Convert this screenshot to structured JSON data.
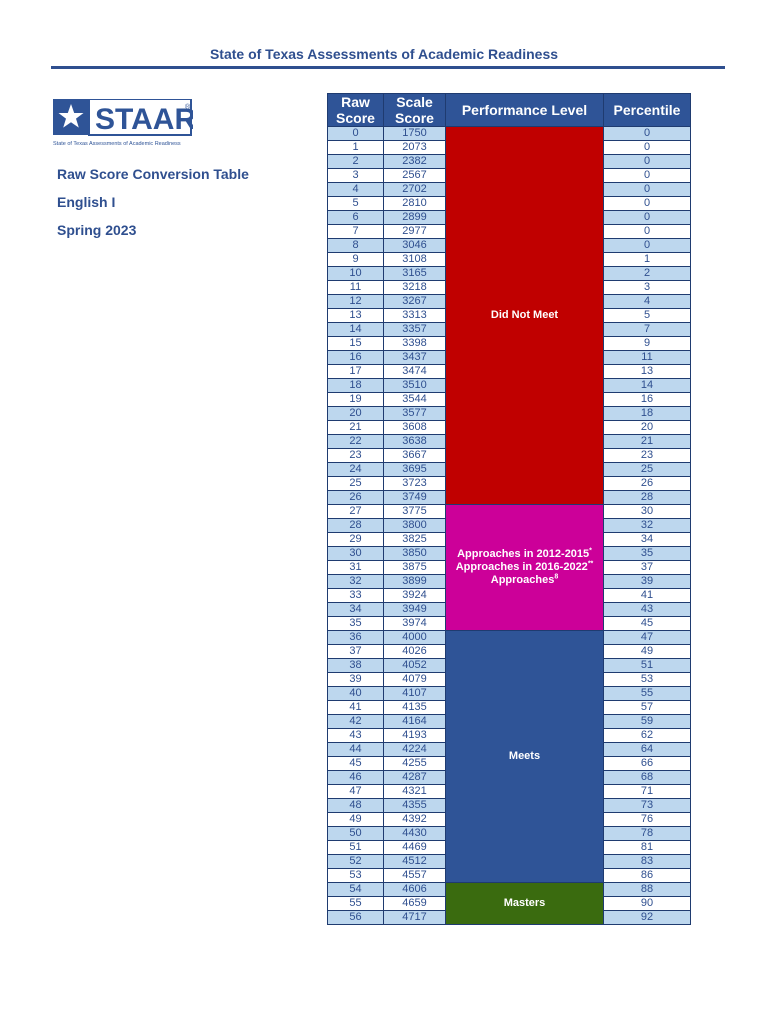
{
  "header": {
    "title": "State of Texas Assessments of Academic Readiness"
  },
  "logo": {
    "wordmark": "STAAR",
    "registered": "®",
    "tagline": "State of Texas Assessments of Academic Readiness",
    "colors": {
      "blue": "#2f5497",
      "white": "#ffffff"
    }
  },
  "sidebar": {
    "table_name": "Raw Score Conversion Table",
    "subject": "English I",
    "term": "Spring 2023"
  },
  "table": {
    "headers": {
      "raw_line1": "Raw",
      "raw_line2": "Score",
      "scale_line1": "Scale",
      "scale_line2": "Score",
      "level": "Performance Level",
      "percentile": "Percentile"
    },
    "levels": {
      "did_not_meet": "Did Not Meet",
      "approaches_line1": "Approaches in 2012-2015",
      "approaches_line1_sup": "*",
      "approaches_line2": "Approaches in 2016-2022",
      "approaches_line2_sup": "**",
      "approaches_line3": "Approaches",
      "approaches_line3_sup": "8",
      "meets": "Meets",
      "masters": "Masters"
    },
    "level_spans": [
      {
        "key": "did_not_meet",
        "start_raw": 0,
        "rows": 27,
        "color": "#c00000"
      },
      {
        "key": "approaches",
        "start_raw": 27,
        "rows": 9,
        "color": "#cc0099"
      },
      {
        "key": "meets",
        "start_raw": 36,
        "rows": 18,
        "color": "#2f5497"
      },
      {
        "key": "masters",
        "start_raw": 54,
        "rows": 3,
        "color": "#3a6b0f"
      }
    ],
    "rows": [
      [
        "0",
        "1750",
        "0"
      ],
      [
        "1",
        "2073",
        "0"
      ],
      [
        "2",
        "2382",
        "0"
      ],
      [
        "3",
        "2567",
        "0"
      ],
      [
        "4",
        "2702",
        "0"
      ],
      [
        "5",
        "2810",
        "0"
      ],
      [
        "6",
        "2899",
        "0"
      ],
      [
        "7",
        "2977",
        "0"
      ],
      [
        "8",
        "3046",
        "0"
      ],
      [
        "9",
        "3108",
        "1"
      ],
      [
        "10",
        "3165",
        "2"
      ],
      [
        "11",
        "3218",
        "3"
      ],
      [
        "12",
        "3267",
        "4"
      ],
      [
        "13",
        "3313",
        "5"
      ],
      [
        "14",
        "3357",
        "7"
      ],
      [
        "15",
        "3398",
        "9"
      ],
      [
        "16",
        "3437",
        "11"
      ],
      [
        "17",
        "3474",
        "13"
      ],
      [
        "18",
        "3510",
        "14"
      ],
      [
        "19",
        "3544",
        "16"
      ],
      [
        "20",
        "3577",
        "18"
      ],
      [
        "21",
        "3608",
        "20"
      ],
      [
        "22",
        "3638",
        "21"
      ],
      [
        "23",
        "3667",
        "23"
      ],
      [
        "24",
        "3695",
        "25"
      ],
      [
        "25",
        "3723",
        "26"
      ],
      [
        "26",
        "3749",
        "28"
      ],
      [
        "27",
        "3775",
        "30"
      ],
      [
        "28",
        "3800",
        "32"
      ],
      [
        "29",
        "3825",
        "34"
      ],
      [
        "30",
        "3850",
        "35"
      ],
      [
        "31",
        "3875",
        "37"
      ],
      [
        "32",
        "3899",
        "39"
      ],
      [
        "33",
        "3924",
        "41"
      ],
      [
        "34",
        "3949",
        "43"
      ],
      [
        "35",
        "3974",
        "45"
      ],
      [
        "36",
        "4000",
        "47"
      ],
      [
        "37",
        "4026",
        "49"
      ],
      [
        "38",
        "4052",
        "51"
      ],
      [
        "39",
        "4079",
        "53"
      ],
      [
        "40",
        "4107",
        "55"
      ],
      [
        "41",
        "4135",
        "57"
      ],
      [
        "42",
        "4164",
        "59"
      ],
      [
        "43",
        "4193",
        "62"
      ],
      [
        "44",
        "4224",
        "64"
      ],
      [
        "45",
        "4255",
        "66"
      ],
      [
        "46",
        "4287",
        "68"
      ],
      [
        "47",
        "4321",
        "71"
      ],
      [
        "48",
        "4355",
        "73"
      ],
      [
        "49",
        "4392",
        "76"
      ],
      [
        "50",
        "4430",
        "78"
      ],
      [
        "51",
        "4469",
        "81"
      ],
      [
        "52",
        "4512",
        "83"
      ],
      [
        "53",
        "4557",
        "86"
      ],
      [
        "54",
        "4606",
        "88"
      ],
      [
        "55",
        "4659",
        "90"
      ],
      [
        "56",
        "4717",
        "92"
      ]
    ]
  }
}
